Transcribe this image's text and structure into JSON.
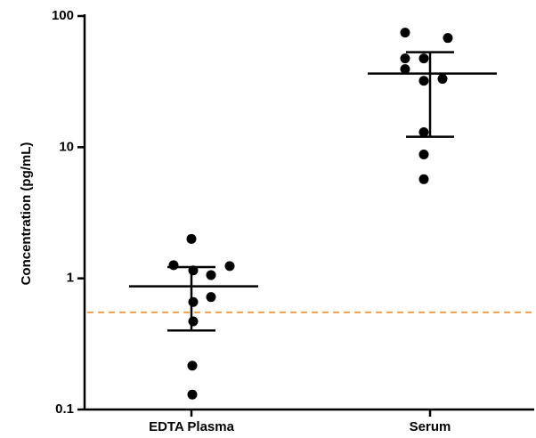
{
  "chart_data": {
    "type": "dot_plot",
    "y_label": "Concentration (pg/mL)",
    "categories": [
      "EDTA Plasma",
      "Serum"
    ],
    "values": [
      [
        2.0,
        1.26,
        1.24,
        1.15,
        1.06,
        0.72,
        0.66,
        0.47,
        0.216,
        0.13
      ],
      [
        74.8,
        68,
        47.5,
        47.5,
        39.4,
        32.1,
        33.2,
        13.0,
        8.8,
        5.7
      ]
    ],
    "means": [
      0.87,
      36.4
    ],
    "upper": [
      1.22,
      53
    ],
    "lower": [
      0.4,
      12.0
    ],
    "color": "#000000",
    "reference_line": 0.55,
    "reference_color": "#f5a04a",
    "log_y": true,
    "ylim": [
      0.1,
      100
    ],
    "yticks": [
      {
        "value": 0.1,
        "label": "0.1"
      },
      1,
      10,
      100
    ]
  }
}
